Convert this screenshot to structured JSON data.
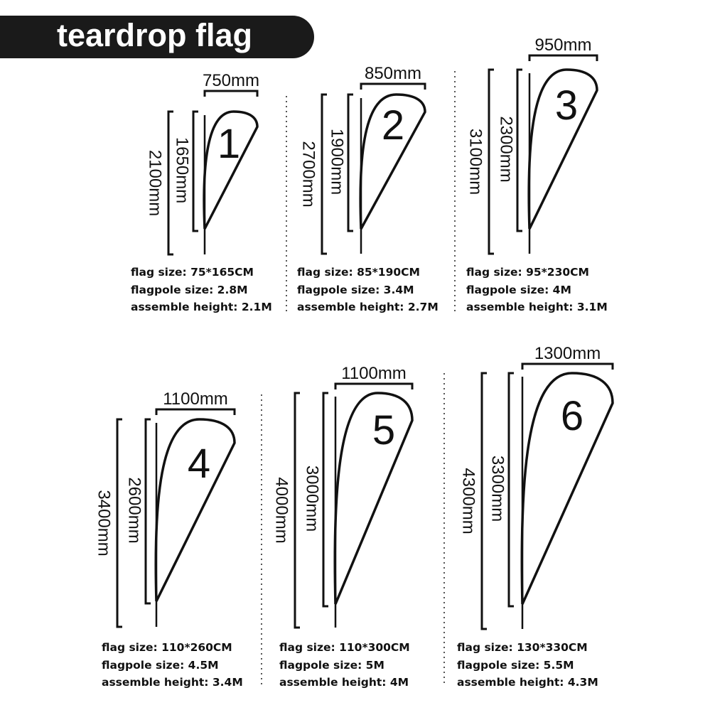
{
  "title": "teardrop flag",
  "flags": [
    {
      "number": "1",
      "width": "750mm",
      "flag_height": "1650mm",
      "total_height": "2100mm",
      "flag_size": "flag size: 75*165CM",
      "flagpole_size": "flagpole size: 2.8M",
      "assemble_height": "assemble height: 2.1M"
    },
    {
      "number": "2",
      "width": "850mm",
      "flag_height": "1900mm",
      "total_height": "2700mm",
      "flag_size": "flag size: 85*190CM",
      "flagpole_size": "flagpole size: 3.4M",
      "assemble_height": "assemble height: 2.7M"
    },
    {
      "number": "3",
      "width": "950mm",
      "flag_height": "2300mm",
      "total_height": "3100mm",
      "flag_size": "flag size: 95*230CM",
      "flagpole_size": "flagpole size: 4M",
      "assemble_height": "assemble height: 3.1M"
    },
    {
      "number": "4",
      "width": "1100mm",
      "flag_height": "2600mm",
      "total_height": "3400mm",
      "flag_size": "flag size: 110*260CM",
      "flagpole_size": "flagpole size: 4.5M",
      "assemble_height": "assemble height: 3.4M"
    },
    {
      "number": "5",
      "width": "1100mm",
      "flag_height": "3000mm",
      "total_height": "4000mm",
      "flag_size": "flag size: 110*300CM",
      "flagpole_size": "flagpole size: 5M",
      "assemble_height": "assemble height: 4M"
    },
    {
      "number": "6",
      "width": "1300mm",
      "flag_height": "3300mm",
      "total_height": "4300mm",
      "flag_size": "flag size: 130*330CM",
      "flagpole_size": "flagpole size: 5.5M",
      "assemble_height": "assemble height: 4.3M"
    }
  ]
}
